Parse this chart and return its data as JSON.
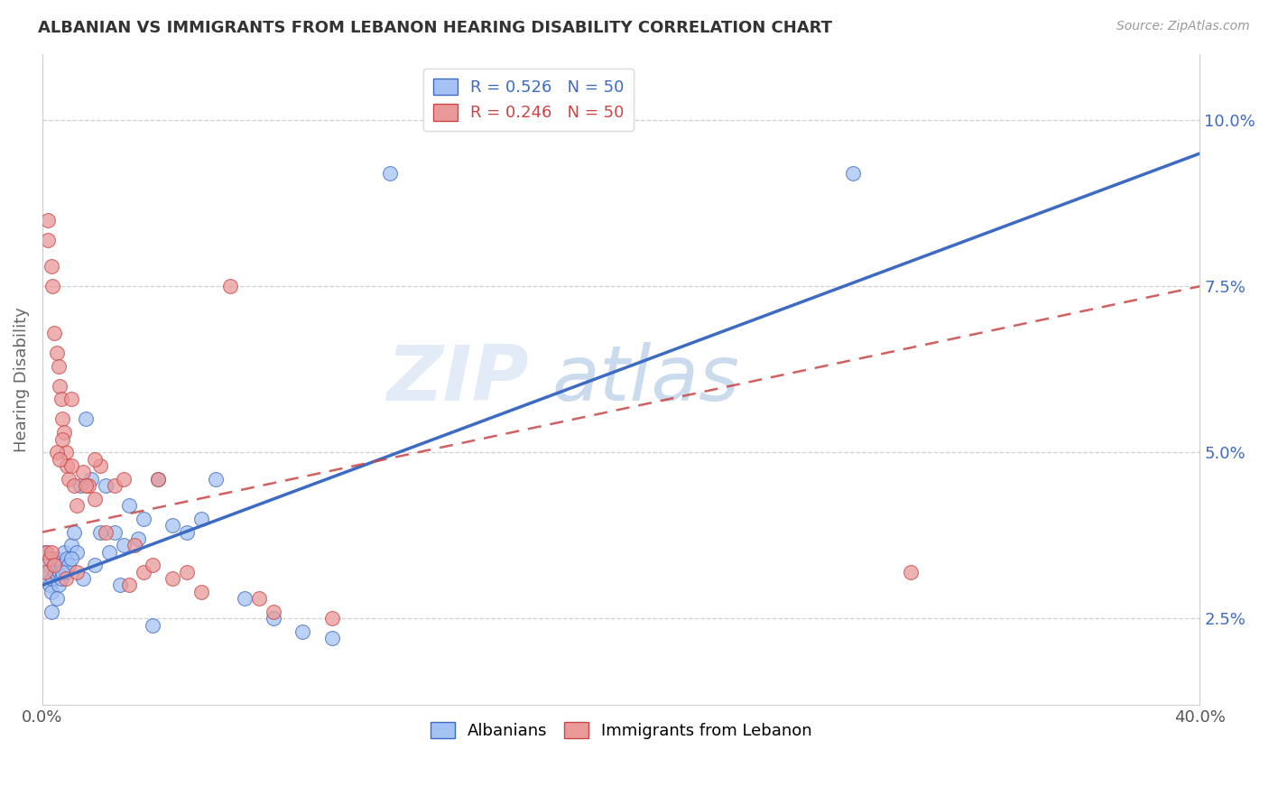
{
  "title": "ALBANIAN VS IMMIGRANTS FROM LEBANON HEARING DISABILITY CORRELATION CHART",
  "source": "Source: ZipAtlas.com",
  "ylabel": "Hearing Disability",
  "yticks": [
    2.5,
    5.0,
    7.5,
    10.0
  ],
  "ytick_labels": [
    "2.5%",
    "5.0%",
    "7.5%",
    "10.0%"
  ],
  "xrange": [
    0.0,
    40.0
  ],
  "yrange": [
    1.2,
    11.0
  ],
  "blue_color": "#a4c2f4",
  "pink_color": "#ea9999",
  "blue_line_color": "#3d6bc4",
  "pink_line_color": "#cc4444",
  "watermark_zip": "ZIP",
  "watermark_atlas": "atlas",
  "albanians_x": [
    0.1,
    0.15,
    0.2,
    0.25,
    0.3,
    0.35,
    0.4,
    0.45,
    0.5,
    0.55,
    0.6,
    0.65,
    0.7,
    0.75,
    0.8,
    0.85,
    0.9,
    1.0,
    1.1,
    1.2,
    1.3,
    1.5,
    1.7,
    2.0,
    2.2,
    2.5,
    2.8,
    3.0,
    3.3,
    3.5,
    4.0,
    4.5,
    5.0,
    5.5,
    6.0,
    7.0,
    8.0,
    9.0,
    10.0,
    12.0,
    0.3,
    0.5,
    0.7,
    1.0,
    1.4,
    1.8,
    2.3,
    2.7,
    3.8,
    28.0
  ],
  "albanians_y": [
    3.5,
    3.3,
    3.2,
    3.0,
    2.9,
    3.1,
    3.3,
    3.2,
    3.4,
    3.0,
    3.2,
    3.1,
    3.3,
    3.5,
    3.2,
    3.4,
    3.3,
    3.6,
    3.8,
    3.5,
    4.5,
    5.5,
    4.6,
    3.8,
    4.5,
    3.8,
    3.6,
    4.2,
    3.7,
    4.0,
    4.6,
    3.9,
    3.8,
    4.0,
    4.6,
    2.8,
    2.5,
    2.3,
    2.2,
    9.2,
    2.6,
    2.8,
    3.2,
    3.4,
    3.1,
    3.3,
    3.5,
    3.0,
    2.4,
    9.2
  ],
  "lebanon_x": [
    0.1,
    0.15,
    0.2,
    0.25,
    0.3,
    0.35,
    0.4,
    0.5,
    0.55,
    0.6,
    0.65,
    0.7,
    0.75,
    0.8,
    0.85,
    0.9,
    1.0,
    1.1,
    1.2,
    1.4,
    1.6,
    1.8,
    2.0,
    2.5,
    3.0,
    3.5,
    4.0,
    5.0,
    6.5,
    7.5,
    0.3,
    0.5,
    0.7,
    1.0,
    1.5,
    2.2,
    3.2,
    4.5,
    0.2,
    8.0,
    0.4,
    0.6,
    0.8,
    1.2,
    1.8,
    2.8,
    3.8,
    5.5,
    10.0,
    30.0
  ],
  "lebanon_y": [
    3.2,
    3.5,
    8.2,
    3.4,
    7.8,
    7.5,
    6.8,
    6.5,
    6.3,
    6.0,
    5.8,
    5.5,
    5.3,
    5.0,
    4.8,
    4.6,
    5.8,
    4.5,
    4.2,
    4.7,
    4.5,
    4.3,
    4.8,
    4.5,
    3.0,
    3.2,
    4.6,
    3.2,
    7.5,
    2.8,
    3.5,
    5.0,
    5.2,
    4.8,
    4.5,
    3.8,
    3.6,
    3.1,
    8.5,
    2.6,
    3.3,
    4.9,
    3.1,
    3.2,
    4.9,
    4.6,
    3.3,
    2.9,
    2.5,
    3.2
  ]
}
